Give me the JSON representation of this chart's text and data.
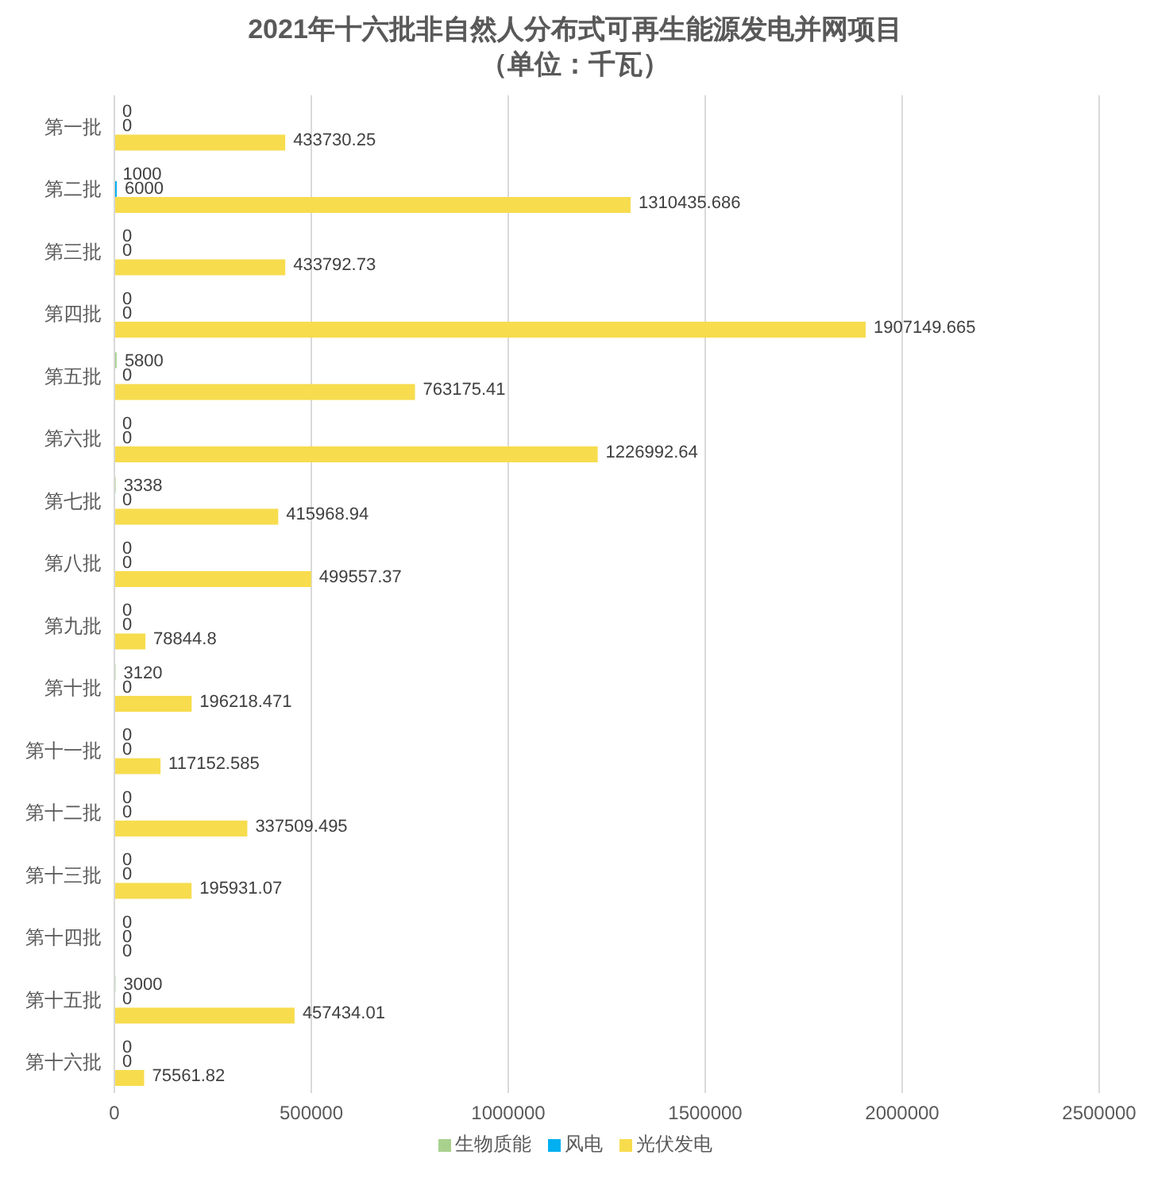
{
  "chart_data": {
    "type": "bar",
    "orientation": "horizontal",
    "title": "2021年十六批非自然人分布式可再生能源发电并网项目",
    "subtitle": "（单位：千瓦）",
    "categories": [
      "第一批",
      "第二批",
      "第三批",
      "第四批",
      "第五批",
      "第六批",
      "第七批",
      "第八批",
      "第九批",
      "第十批",
      "第十一批",
      "第十二批",
      "第十三批",
      "第十四批",
      "第十五批",
      "第十六批"
    ],
    "series": [
      {
        "name": "生物质能",
        "color": "#a9d18e",
        "values": [
          0,
          1000,
          0,
          0,
          5800,
          0,
          3338,
          0,
          0,
          3120,
          0,
          0,
          0,
          0,
          3000,
          0
        ]
      },
      {
        "name": "风电",
        "color": "#00b0f0",
        "values": [
          0,
          6000,
          0,
          0,
          0,
          0,
          0,
          0,
          0,
          0,
          0,
          0,
          0,
          0,
          0,
          0
        ]
      },
      {
        "name": "光伏发电",
        "color": "#f7dc4d",
        "values": [
          433730.25,
          1310435.686,
          433792.73,
          1907149.665,
          763175.41,
          1226992.64,
          415968.94,
          499557.37,
          78844.8,
          196218.471,
          117152.585,
          337509.495,
          195931.07,
          0,
          457434.01,
          75561.82
        ]
      }
    ],
    "xlim": [
      0,
      2500000
    ],
    "xticks": [
      0,
      500000,
      1000000,
      1500000,
      2000000,
      2500000
    ],
    "grid": "x",
    "legend": "bottom",
    "data_labels": true
  }
}
